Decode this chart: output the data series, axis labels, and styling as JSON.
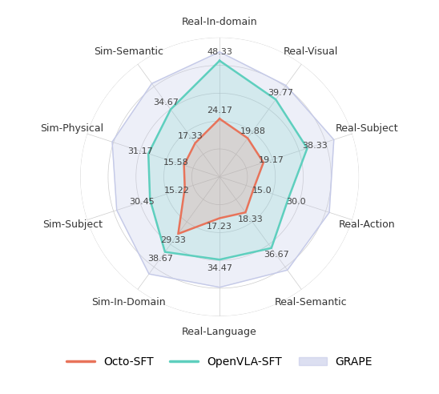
{
  "categories": [
    "Real-In-domain",
    "Real-Visual",
    "Real-Subject",
    "Real-Action",
    "Real-Semantic",
    "Real-Language",
    "Sim-In-Domain",
    "Sim-Subject",
    "Sim-Physical",
    "Sim-Semantic"
  ],
  "series": {
    "Octo-SFT": [
      24.17,
      19.88,
      19.17,
      15.0,
      18.33,
      17.23,
      29.33,
      15.22,
      15.58,
      17.33
    ],
    "OpenVLA-SFT": [
      48.33,
      39.77,
      38.33,
      30.0,
      36.67,
      34.47,
      38.67,
      30.45,
      31.17,
      34.67
    ],
    "GRAPE": [
      52.0,
      47.0,
      50.0,
      48.0,
      48.0,
      46.0,
      50.0,
      45.0,
      47.0,
      48.0
    ]
  },
  "colors": {
    "Octo-SFT": "#e8735a",
    "OpenVLA-SFT": "#5ecfbe",
    "GRAPE": "#c5cae8"
  },
  "fill_alphas": {
    "Octo-SFT": 0.18,
    "OpenVLA-SFT": 0.18,
    "GRAPE": 0.3
  },
  "line_widths": {
    "Octo-SFT": 1.8,
    "OpenVLA-SFT": 1.8,
    "GRAPE": 1.0
  },
  "value_labels_openvla": [
    48.33,
    39.77,
    38.33,
    30.0,
    36.67,
    34.47,
    38.67,
    30.45,
    31.17,
    34.67
  ],
  "value_labels_octo": [
    24.17,
    19.88,
    19.17,
    15.0,
    18.33,
    17.23,
    29.33,
    15.22,
    15.58,
    17.33
  ],
  "radial_max": 58,
  "n_grid_circles": 5,
  "grid_color": "#cccccc",
  "spoke_color": "#cccccc",
  "background_color": "#ffffff",
  "legend_fontsize": 10,
  "label_fontsize": 9,
  "value_label_fontsize": 8
}
